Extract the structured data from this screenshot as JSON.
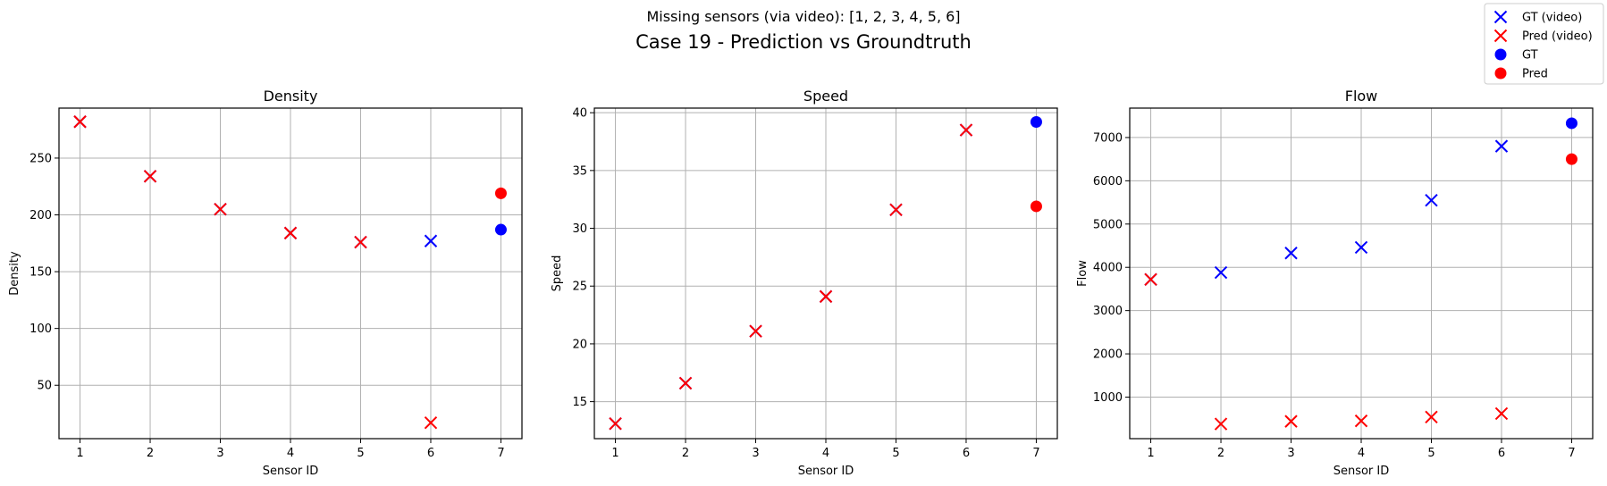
{
  "figure": {
    "subtitle": "Missing sensors (via video): [1, 2, 3, 4, 5, 6]",
    "title": "Case 19 - Prediction vs Groundtruth"
  },
  "legend": {
    "placement": "top-right",
    "entries": [
      {
        "label": "GT (video)",
        "marker": "x",
        "color": "#0000ff"
      },
      {
        "label": "Pred (video)",
        "marker": "x",
        "color": "#ff0000"
      },
      {
        "label": "GT",
        "marker": "o",
        "color": "#0000ff"
      },
      {
        "label": "Pred",
        "marker": "o",
        "color": "#ff0000"
      }
    ]
  },
  "colors": {
    "gt": "#0000ff",
    "pred": "#ff0000",
    "grid": "#b0b0b0"
  },
  "chart_data": [
    {
      "type": "scatter",
      "title": "Density",
      "xlabel": "Sensor ID",
      "ylabel": "Density",
      "xlim": [
        0.7,
        7.3
      ],
      "ylim": [
        3,
        294
      ],
      "xticks": [
        1,
        2,
        3,
        4,
        5,
        6,
        7
      ],
      "yticks": [
        50,
        100,
        150,
        200,
        250
      ],
      "grid": true,
      "series": [
        {
          "name": "GT (video)",
          "marker": "x",
          "x": [
            1,
            2,
            3,
            4,
            5,
            6
          ],
          "y": [
            282,
            234,
            205,
            184,
            176,
            177
          ]
        },
        {
          "name": "Pred (video)",
          "marker": "x",
          "x": [
            1,
            2,
            3,
            4,
            5,
            6
          ],
          "y": [
            282,
            234,
            205,
            184,
            176,
            17
          ]
        },
        {
          "name": "GT",
          "marker": "o",
          "x": [
            7
          ],
          "y": [
            187
          ]
        },
        {
          "name": "Pred",
          "marker": "o",
          "x": [
            7
          ],
          "y": [
            219
          ]
        }
      ]
    },
    {
      "type": "scatter",
      "title": "Speed",
      "xlabel": "Sensor ID",
      "ylabel": "Speed",
      "xlim": [
        0.7,
        7.3
      ],
      "ylim": [
        11.8,
        40.4
      ],
      "xticks": [
        1,
        2,
        3,
        4,
        5,
        6,
        7
      ],
      "yticks": [
        15,
        20,
        25,
        30,
        35,
        40
      ],
      "grid": true,
      "series": [
        {
          "name": "GT (video)",
          "marker": "x",
          "x": [
            1,
            2,
            3,
            4,
            5,
            6
          ],
          "y": [
            13.1,
            16.6,
            21.1,
            24.1,
            31.6,
            38.5
          ]
        },
        {
          "name": "Pred (video)",
          "marker": "x",
          "x": [
            1,
            2,
            3,
            4,
            5,
            6
          ],
          "y": [
            13.1,
            16.6,
            21.1,
            24.1,
            31.6,
            38.5
          ]
        },
        {
          "name": "GT",
          "marker": "o",
          "x": [
            7
          ],
          "y": [
            39.2
          ]
        },
        {
          "name": "Pred",
          "marker": "o",
          "x": [
            7
          ],
          "y": [
            31.9
          ]
        }
      ]
    },
    {
      "type": "scatter",
      "title": "Flow",
      "xlabel": "Sensor ID",
      "ylabel": "Flow",
      "xlim": [
        0.7,
        7.3
      ],
      "ylim": [
        40,
        7680
      ],
      "xticks": [
        1,
        2,
        3,
        4,
        5,
        6,
        7
      ],
      "yticks": [
        1000,
        2000,
        3000,
        4000,
        5000,
        6000,
        7000
      ],
      "grid": true,
      "series": [
        {
          "name": "GT (video)",
          "marker": "x",
          "x": [
            1,
            2,
            3,
            4,
            5,
            6
          ],
          "y": [
            3720,
            3880,
            4330,
            4460,
            5550,
            6800
          ]
        },
        {
          "name": "Pred (video)",
          "marker": "x",
          "x": [
            1,
            2,
            3,
            4,
            5,
            6
          ],
          "y": [
            3720,
            380,
            440,
            450,
            540,
            620
          ]
        },
        {
          "name": "GT",
          "marker": "o",
          "x": [
            7
          ],
          "y": [
            7330
          ]
        },
        {
          "name": "Pred",
          "marker": "o",
          "x": [
            7
          ],
          "y": [
            6500
          ]
        }
      ]
    }
  ]
}
